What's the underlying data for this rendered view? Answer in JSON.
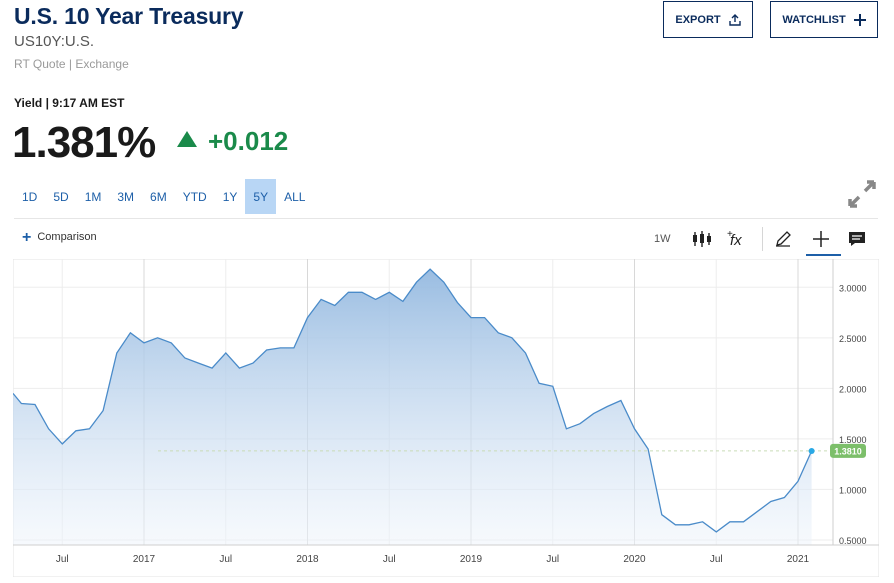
{
  "header": {
    "title": "U.S. 10 Year Treasury",
    "symbol": "US10Y:U.S.",
    "source": "RT Quote | Exchange",
    "export_label": "EXPORT",
    "watchlist_label": "WATCHLIST"
  },
  "quote": {
    "yield_line": "Yield | 9:17 AM EST",
    "price": "1.381%",
    "change": "+0.012",
    "direction": "up",
    "up_color": "#1a8a4a"
  },
  "ranges": [
    {
      "label": "1D",
      "active": false
    },
    {
      "label": "5D",
      "active": false
    },
    {
      "label": "1M",
      "active": false
    },
    {
      "label": "3M",
      "active": false
    },
    {
      "label": "6M",
      "active": false
    },
    {
      "label": "YTD",
      "active": false
    },
    {
      "label": "1Y",
      "active": false
    },
    {
      "label": "5Y",
      "active": true
    },
    {
      "label": "ALL",
      "active": false
    }
  ],
  "toolbar": {
    "comparison_label": "Comparison",
    "interval_label": "1W",
    "icons": [
      "candlestick-icon",
      "function-icon",
      "pencil-icon",
      "crosshair-icon",
      "annotation-icon"
    ]
  },
  "chart_data": {
    "type": "area",
    "x_tick_labels": [
      "Jul",
      "2017",
      "Jul",
      "2018",
      "Jul",
      "2019",
      "Jul",
      "2020",
      "Jul",
      "2021"
    ],
    "y_tick_labels": [
      "3.0000",
      "2.5000",
      "2.0000",
      "1.5000",
      "1.0000",
      "0.5000"
    ],
    "y_ticks": [
      3.0,
      2.5,
      2.0,
      1.5,
      1.0,
      0.5
    ],
    "ylim": [
      0.45,
      3.28
    ],
    "current_value": 1.381,
    "current_label": "1.3810",
    "line_color": "#4a8bc9",
    "label_color": "#7cbf6a",
    "grid": true,
    "x": [
      "2016-03",
      "2016-04",
      "2016-05",
      "2016-06",
      "2016-07",
      "2016-08",
      "2016-09",
      "2016-10",
      "2016-11",
      "2016-12",
      "2017-01",
      "2017-02",
      "2017-03",
      "2017-04",
      "2017-05",
      "2017-06",
      "2017-07",
      "2017-08",
      "2017-09",
      "2017-10",
      "2017-11",
      "2017-12",
      "2018-01",
      "2018-02",
      "2018-03",
      "2018-04",
      "2018-05",
      "2018-06",
      "2018-07",
      "2018-08",
      "2018-09",
      "2018-10",
      "2018-11",
      "2018-12",
      "2019-01",
      "2019-02",
      "2019-03",
      "2019-04",
      "2019-05",
      "2019-06",
      "2019-07",
      "2019-08",
      "2019-09",
      "2019-10",
      "2019-11",
      "2019-12",
      "2020-01",
      "2020-02",
      "2020-03",
      "2020-04",
      "2020-05",
      "2020-06",
      "2020-07",
      "2020-08",
      "2020-09",
      "2020-10",
      "2020-11",
      "2020-12",
      "2021-01",
      "2021-02"
    ],
    "values": [
      1.95,
      1.85,
      1.84,
      1.6,
      1.45,
      1.58,
      1.6,
      1.78,
      2.35,
      2.55,
      2.45,
      2.5,
      2.45,
      2.3,
      2.25,
      2.2,
      2.35,
      2.2,
      2.25,
      2.38,
      2.4,
      2.4,
      2.7,
      2.88,
      2.82,
      2.95,
      2.95,
      2.88,
      2.95,
      2.86,
      3.05,
      3.18,
      3.05,
      2.85,
      2.7,
      2.7,
      2.55,
      2.5,
      2.35,
      2.05,
      2.02,
      1.6,
      1.65,
      1.75,
      1.82,
      1.88,
      1.6,
      1.4,
      0.75,
      0.65,
      0.65,
      0.68,
      0.58,
      0.68,
      0.68,
      0.78,
      0.88,
      0.92,
      1.08,
      1.38
    ]
  }
}
